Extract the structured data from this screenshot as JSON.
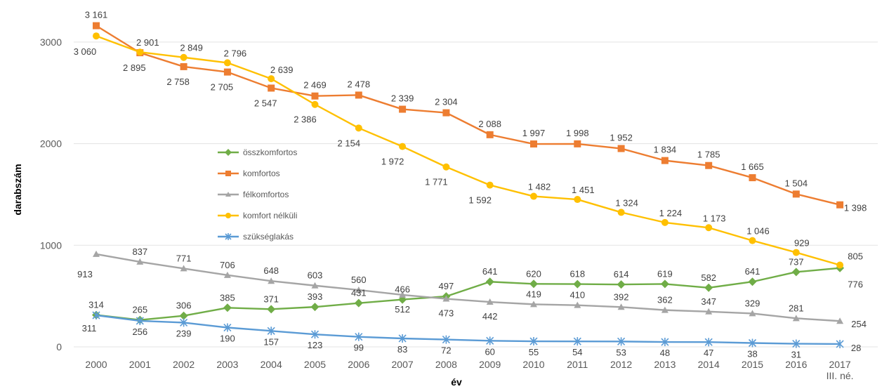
{
  "chart_data": {
    "type": "line",
    "xlabel": "év",
    "ylabel": "darabszám",
    "categories": [
      "2000",
      "2001",
      "2002",
      "2003",
      "2004",
      "2005",
      "2006",
      "2007",
      "2008",
      "2009",
      "2010",
      "2011",
      "2012",
      "2013",
      "2014",
      "2015",
      "2016",
      "2017"
    ],
    "category_sublabels": {
      "2017": "III. né."
    },
    "ylim": [
      0,
      3250
    ],
    "yticks": [
      0,
      1000,
      2000,
      3000
    ],
    "grid": true,
    "legend_position": "middle-left",
    "series": [
      {
        "name": "összkomfortos",
        "color": "#70AD47",
        "marker": "diamond",
        "values": [
          314,
          265,
          306,
          385,
          371,
          393,
          431,
          466,
          497,
          641,
          620,
          618,
          614,
          619,
          582,
          641,
          737,
          776
        ],
        "labels": [
          "314",
          "265",
          "306",
          "385",
          "371",
          "393",
          "431",
          "466",
          "497",
          "641",
          "620",
          "618",
          "614",
          "619",
          "582",
          "641",
          "737",
          "776"
        ]
      },
      {
        "name": "komfortos",
        "color": "#ED7D31",
        "marker": "square",
        "values": [
          3161,
          2895,
          2758,
          2705,
          2547,
          2469,
          2478,
          2339,
          2304,
          2088,
          1997,
          1998,
          1952,
          1834,
          1785,
          1665,
          1504,
          1398
        ],
        "labels": [
          "3 161",
          "2 895",
          "2 758",
          "2 705",
          "2 547",
          "2 469",
          "2 478",
          "2 339",
          "2 304",
          "2 088",
          "1 997",
          "1 998",
          "1 952",
          "1 834",
          "1 785",
          "1 665",
          "1 504",
          "1 398"
        ]
      },
      {
        "name": "félkomfortos",
        "color": "#A5A5A5",
        "marker": "triangle",
        "values": [
          913,
          837,
          771,
          706,
          648,
          603,
          560,
          512,
          473,
          442,
          419,
          410,
          392,
          362,
          347,
          329,
          281,
          254
        ],
        "labels": [
          "913",
          "837",
          "771",
          "706",
          "648",
          "603",
          "560",
          "512",
          "473",
          "442",
          "419",
          "410",
          "392",
          "362",
          "347",
          "329",
          "281",
          "254"
        ]
      },
      {
        "name": "komfort nélküli",
        "color": "#FFC000",
        "marker": "circle",
        "values": [
          3060,
          2901,
          2849,
          2796,
          2639,
          2386,
          2154,
          1972,
          1771,
          1592,
          1482,
          1451,
          1324,
          1224,
          1173,
          1046,
          929,
          805
        ],
        "labels": [
          "3 060",
          "2 901",
          "2 849",
          "2 796",
          "2 639",
          "2 386",
          "2 154",
          "1 972",
          "1 771",
          "1 592",
          "1 482",
          "1 451",
          "1 324",
          "1 224",
          "1 173",
          "1 046",
          "929",
          "805"
        ]
      },
      {
        "name": "szükséglakás",
        "color": "#5B9BD5",
        "marker": "star",
        "values": [
          311,
          256,
          239,
          190,
          157,
          123,
          99,
          83,
          72,
          60,
          55,
          54,
          53,
          48,
          47,
          38,
          31,
          28
        ],
        "labels": [
          "311",
          "256",
          "239",
          "190",
          "157",
          "123",
          "99",
          "83",
          "72",
          "60",
          "55",
          "54",
          "53",
          "48",
          "47",
          "38",
          "31",
          "28"
        ]
      }
    ]
  }
}
